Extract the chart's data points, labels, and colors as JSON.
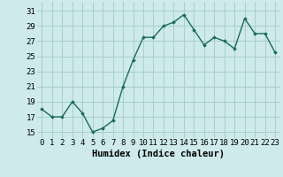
{
  "x": [
    0,
    1,
    2,
    3,
    4,
    5,
    6,
    7,
    8,
    9,
    10,
    11,
    12,
    13,
    14,
    15,
    16,
    17,
    18,
    19,
    20,
    21,
    22,
    23
  ],
  "y": [
    18,
    17,
    17,
    19,
    17.5,
    15,
    15.5,
    16.5,
    21,
    24.5,
    27.5,
    27.5,
    29,
    29.5,
    30.5,
    28.5,
    26.5,
    27.5,
    27,
    26,
    30,
    28,
    28,
    25.5
  ],
  "line_color": "#1a6b5a",
  "marker": "D",
  "marker_size": 1.8,
  "bg_color": "#ceeaea",
  "grid_color": "#a8cece",
  "xlabel": "Humidex (Indice chaleur)",
  "xlabel_fontsize": 7.5,
  "yticks": [
    15,
    17,
    19,
    21,
    23,
    25,
    27,
    29,
    31
  ],
  "xtick_labels": [
    "0",
    "1",
    "2",
    "3",
    "4",
    "5",
    "6",
    "7",
    "8",
    "9",
    "10",
    "11",
    "12",
    "13",
    "14",
    "15",
    "16",
    "17",
    "18",
    "19",
    "20",
    "21",
    "22",
    "23"
  ],
  "ylim": [
    14.2,
    32.2
  ],
  "xlim": [
    -0.5,
    23.5
  ],
  "tick_fontsize": 6.5,
  "linewidth": 1.0
}
